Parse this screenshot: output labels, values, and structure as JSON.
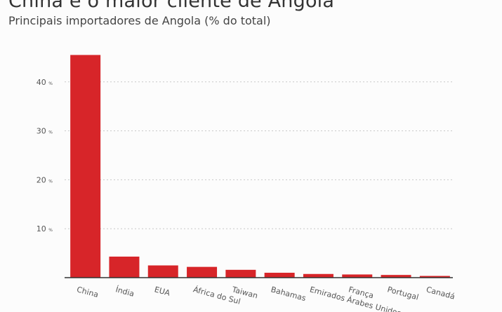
{
  "header": {
    "title": "China é o maior cliente de Angola",
    "subtitle": "Principais importadores de Angola (% do total)"
  },
  "colors": {
    "bar": "#d72529",
    "grid": "#c8c8c8",
    "axis": "#333333"
  },
  "chart_data": {
    "type": "bar",
    "title": "China é o maior cliente de Angola",
    "subtitle": "Principais importadores de Angola (% do total)",
    "categories": [
      "China",
      "Índia",
      "EUA",
      "África do Sul",
      "Taiwan",
      "Bahamas",
      "Emirados Árabes Unidos",
      "França",
      "Portugal",
      "Canadá"
    ],
    "values": [
      45.5,
      4.3,
      2.5,
      2.2,
      1.6,
      1.0,
      0.75,
      0.65,
      0.55,
      0.35
    ],
    "xlabel": "",
    "ylabel": "",
    "ylim": [
      0,
      50
    ],
    "yticks": [
      10,
      20,
      30,
      40
    ],
    "tick_unit": "%",
    "grid": true,
    "legend": "none"
  }
}
